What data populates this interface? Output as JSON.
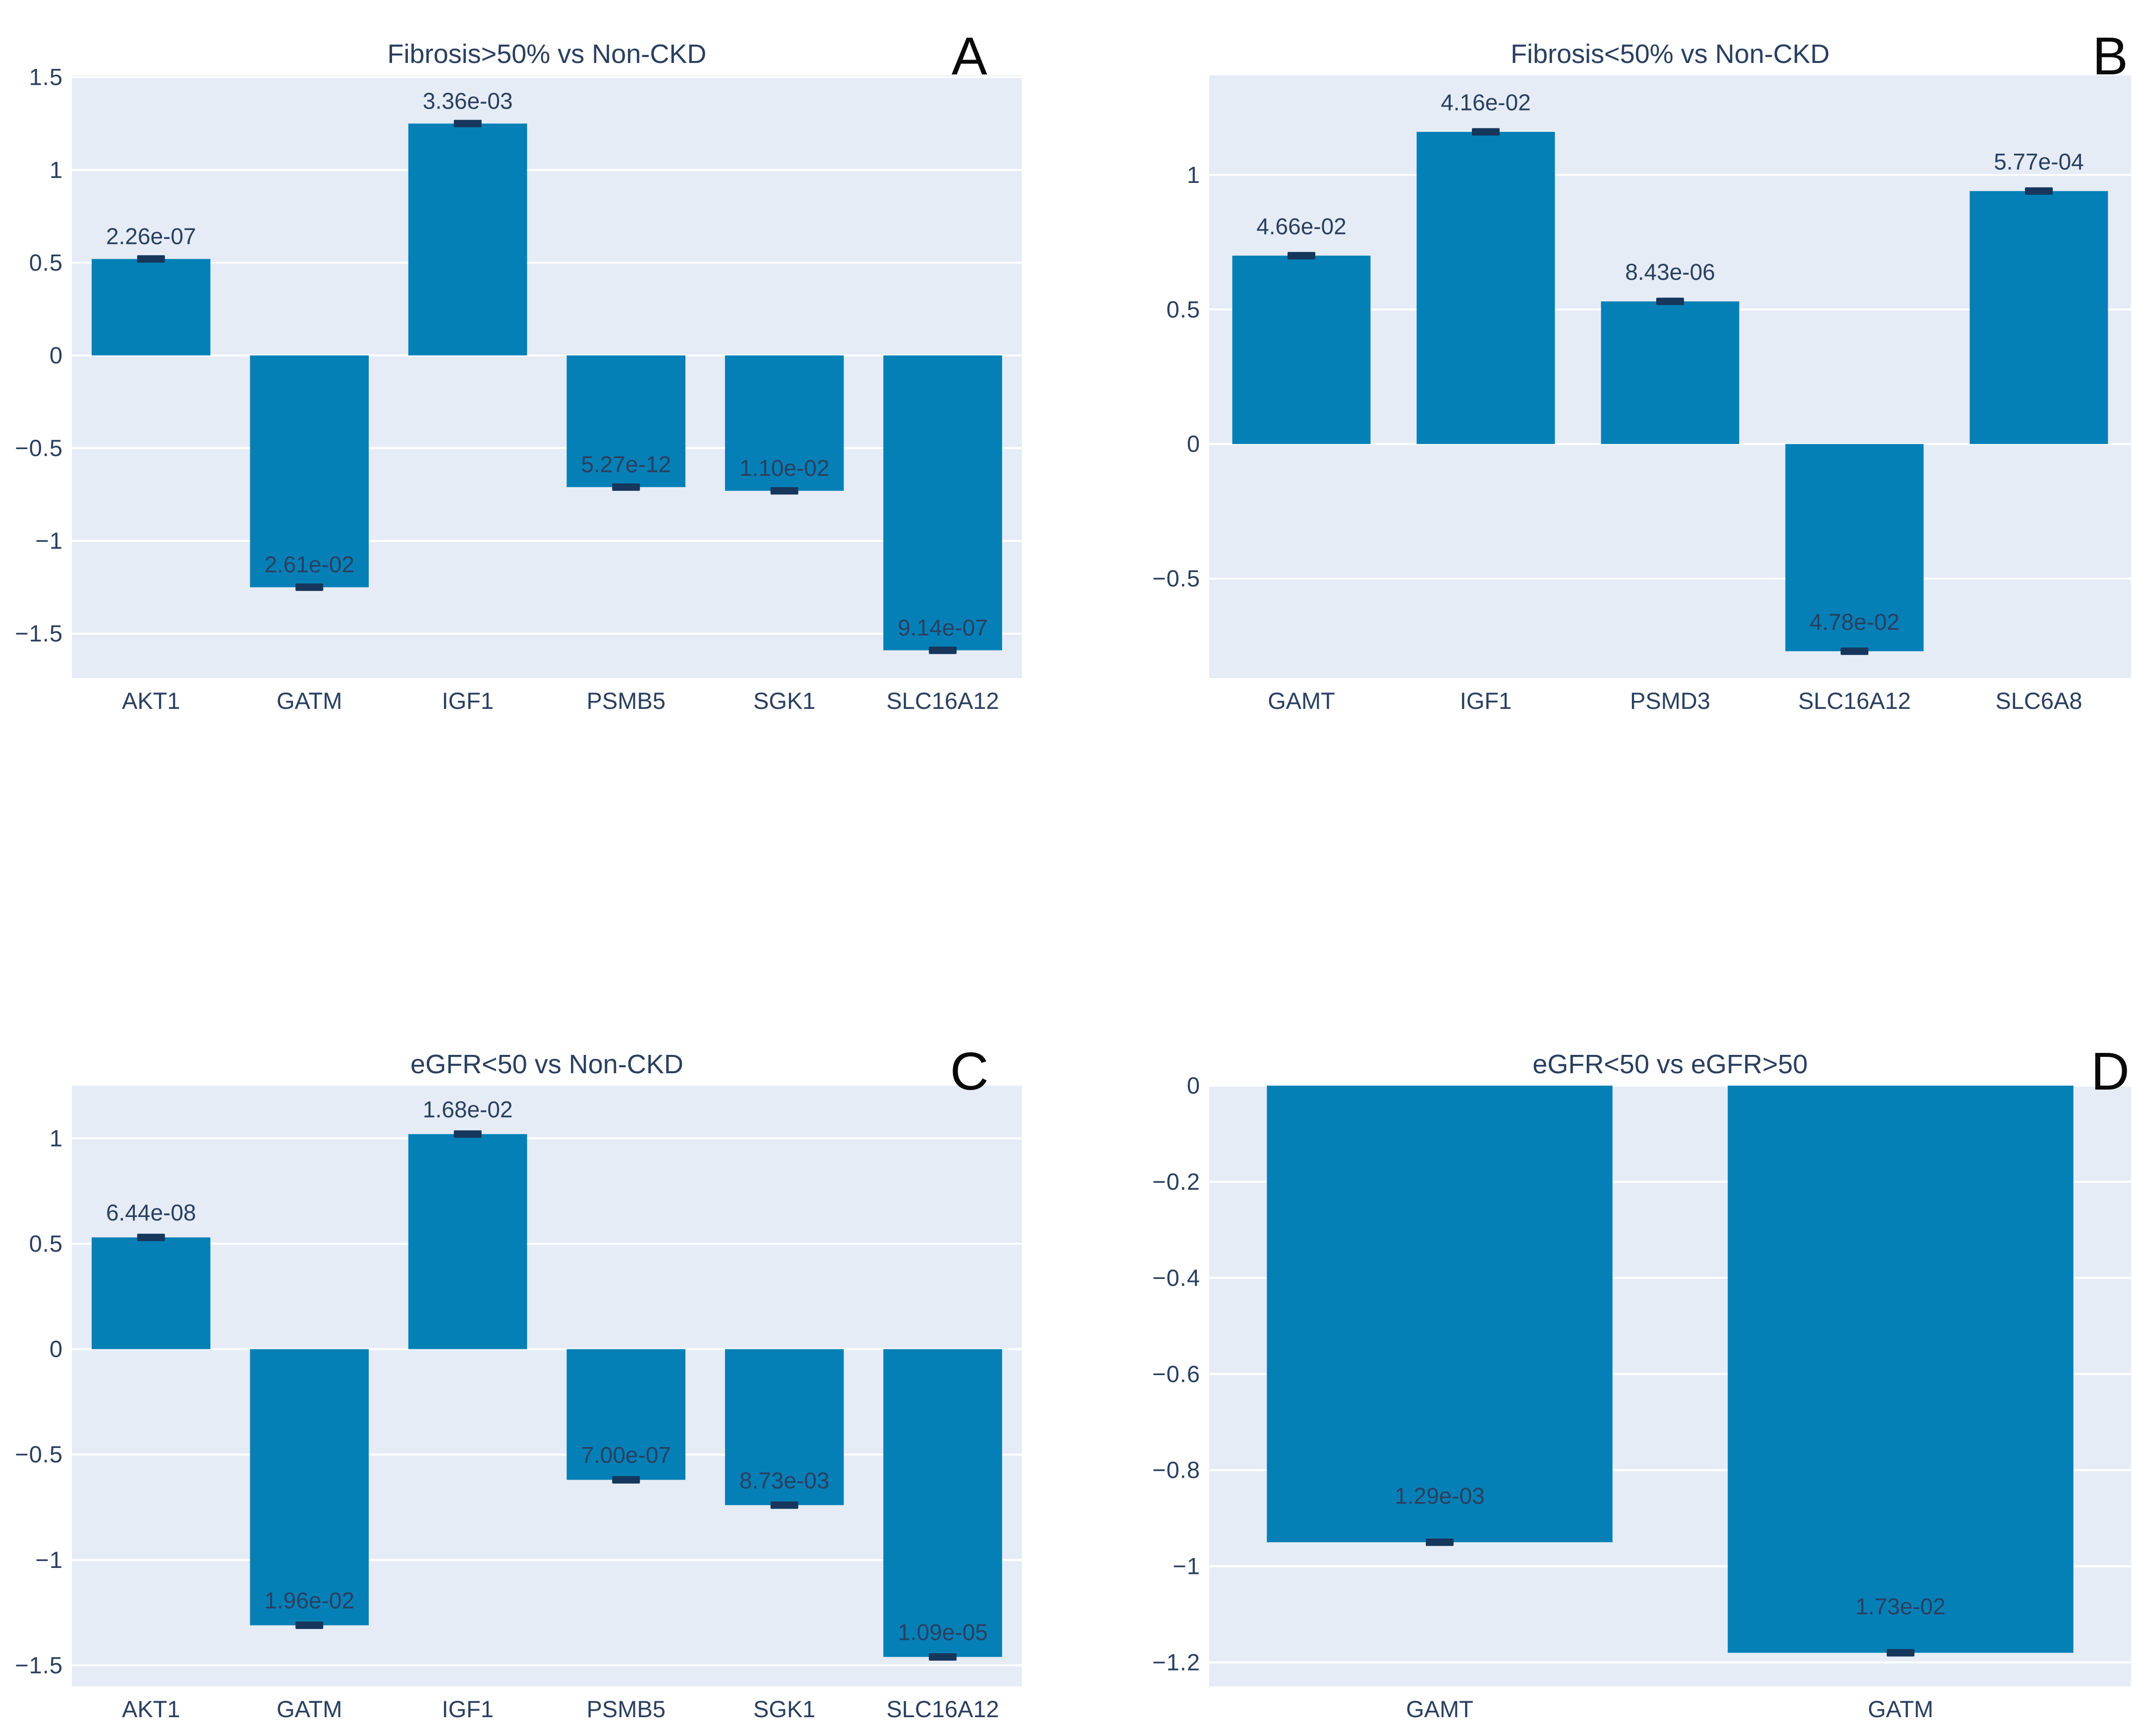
{
  "style": {
    "page_bg": "#ffffff",
    "plot_bg": "#e5ecf6",
    "grid_color": "#ffffff",
    "bar_color": "#0580b7",
    "error_cap_color": "#17365c",
    "text_color": "#2a3f5f",
    "panel_letter_color": "#0a0a0a"
  },
  "chart_data": [
    {
      "type": "bar",
      "panel_letter": "A",
      "title": "Fibrosis>50% vs Non-CKD",
      "categories": [
        "AKT1",
        "GATM",
        "IGF1",
        "PSMB5",
        "SGK1",
        "SLC16A12"
      ],
      "values": [
        0.52,
        -1.25,
        1.25,
        -0.71,
        -0.73,
        -1.59
      ],
      "bar_labels": [
        "2.26e-07",
        "2.61e-02",
        "3.36e-03",
        "5.27e-12",
        "1.10e-02",
        "9.14e-07"
      ],
      "error_caps": true,
      "ylim": [
        -1.74,
        1.51
      ],
      "ytick_values": [
        1.5,
        1,
        0.5,
        0,
        -0.5,
        -1,
        -1.5
      ],
      "ytick_labels": [
        "1.5",
        "1",
        "0.5",
        "0",
        "−0.5",
        "−1",
        "−1.5"
      ],
      "grid": true,
      "legend": "none",
      "xlabel": "",
      "ylabel": ""
    },
    {
      "type": "bar",
      "panel_letter": "B",
      "title": "Fibrosis<50% vs Non-CKD",
      "categories": [
        "GAMT",
        "IGF1",
        "PSMD3",
        "SLC16A12",
        "SLC6A8"
      ],
      "values": [
        0.7,
        1.16,
        0.53,
        -0.77,
        0.94
      ],
      "bar_labels": [
        "4.66e-02",
        "4.16e-02",
        "8.43e-06",
        "4.78e-02",
        "5.77e-04"
      ],
      "error_caps": true,
      "ylim": [
        -0.87,
        1.37
      ],
      "ytick_values": [
        1,
        0.5,
        0,
        -0.5
      ],
      "ytick_labels": [
        "1",
        "0.5",
        "0",
        "−0.5"
      ],
      "grid": true,
      "legend": "none",
      "xlabel": "",
      "ylabel": ""
    },
    {
      "type": "bar",
      "panel_letter": "C",
      "title": "eGFR<50 vs Non-CKD",
      "categories": [
        "AKT1",
        "GATM",
        "IGF1",
        "PSMB5",
        "SGK1",
        "SLC16A12"
      ],
      "values": [
        0.53,
        -1.31,
        1.02,
        -0.62,
        -0.74,
        -1.46
      ],
      "bar_labels": [
        "6.44e-08",
        "1.96e-02",
        "1.68e-02",
        "7.00e-07",
        "8.73e-03",
        "1.09e-05"
      ],
      "error_caps": true,
      "ylim": [
        -1.6,
        1.25
      ],
      "ytick_values": [
        1,
        0.5,
        0,
        -0.5,
        -1,
        -1.5
      ],
      "ytick_labels": [
        "1",
        "0.5",
        "0",
        "−0.5",
        "−1",
        "−1.5"
      ],
      "grid": true,
      "legend": "none",
      "xlabel": "",
      "ylabel": ""
    },
    {
      "type": "bar",
      "panel_letter": "D",
      "title": "eGFR<50 vs eGFR>50",
      "categories": [
        "GAMT",
        "GATM"
      ],
      "values": [
        -0.95,
        -1.18
      ],
      "bar_labels": [
        "1.29e-03",
        "1.73e-02"
      ],
      "error_caps": true,
      "ylim": [
        -1.25,
        0
      ],
      "ytick_values": [
        0,
        -0.2,
        -0.4,
        -0.6,
        -0.8,
        -1,
        -1.2
      ],
      "ytick_labels": [
        "0",
        "−0.2",
        "−0.4",
        "−0.6",
        "−0.8",
        "−1",
        "−1.2"
      ],
      "grid": true,
      "legend": "none",
      "xlabel": "",
      "ylabel": ""
    }
  ]
}
